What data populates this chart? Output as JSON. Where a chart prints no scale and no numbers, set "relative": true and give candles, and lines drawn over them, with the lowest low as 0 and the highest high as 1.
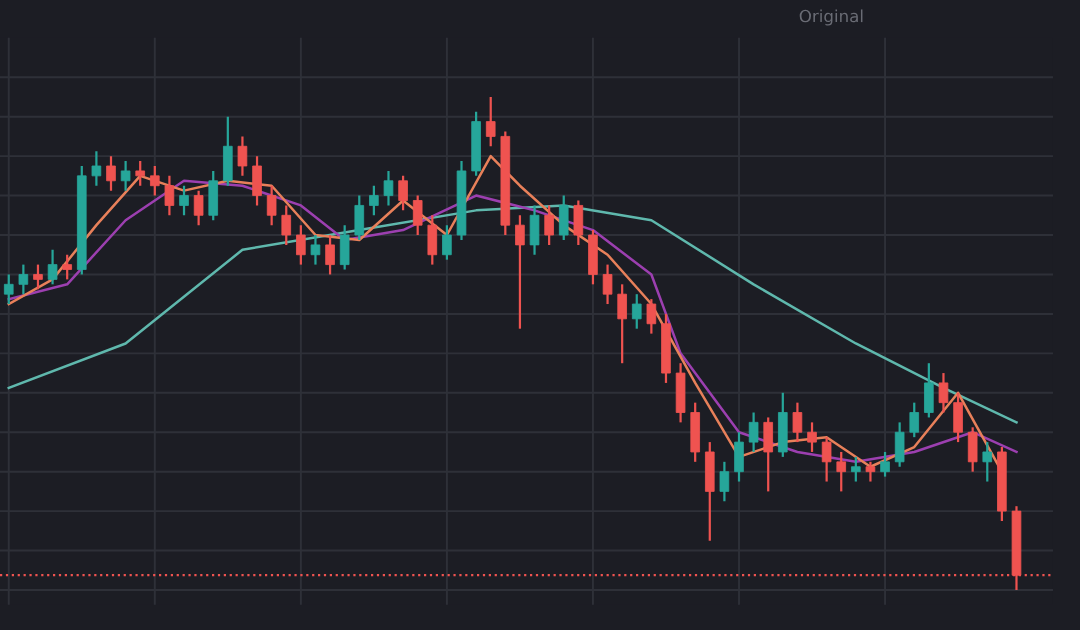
{
  "chart_data": {
    "type": "candlestick",
    "relative": true,
    "grid": true,
    "categories": [
      null,
      null,
      null,
      null,
      null,
      null,
      null,
      null,
      null,
      null,
      null,
      null,
      null,
      null,
      null,
      null,
      null,
      null,
      null,
      null,
      null,
      null,
      null,
      null,
      null,
      null,
      null,
      null,
      null,
      null,
      null,
      null,
      null,
      null,
      null,
      null,
      null,
      null,
      null,
      null,
      null,
      null,
      null,
      null,
      null,
      null,
      null,
      null,
      null,
      null,
      null,
      null,
      null,
      null,
      null,
      null,
      null,
      null,
      null,
      null,
      null,
      null,
      null,
      null,
      null,
      null,
      null,
      null,
      null,
      null
    ],
    "ohlc": [
      [
        0.6,
        0.64,
        0.58,
        0.62
      ],
      [
        0.62,
        0.66,
        0.6,
        0.64
      ],
      [
        0.64,
        0.66,
        0.61,
        0.63
      ],
      [
        0.63,
        0.69,
        0.62,
        0.66
      ],
      [
        0.66,
        0.68,
        0.63,
        0.65
      ],
      [
        0.65,
        0.86,
        0.64,
        0.84
      ],
      [
        0.84,
        0.89,
        0.82,
        0.86
      ],
      [
        0.86,
        0.88,
        0.81,
        0.83
      ],
      [
        0.83,
        0.87,
        0.81,
        0.85
      ],
      [
        0.85,
        0.87,
        0.82,
        0.84
      ],
      [
        0.84,
        0.86,
        0.8,
        0.82
      ],
      [
        0.82,
        0.84,
        0.76,
        0.78
      ],
      [
        0.78,
        0.82,
        0.76,
        0.8
      ],
      [
        0.8,
        0.81,
        0.74,
        0.76
      ],
      [
        0.76,
        0.85,
        0.75,
        0.83
      ],
      [
        0.83,
        0.96,
        0.82,
        0.9
      ],
      [
        0.9,
        0.92,
        0.84,
        0.86
      ],
      [
        0.86,
        0.88,
        0.78,
        0.8
      ],
      [
        0.8,
        0.82,
        0.74,
        0.76
      ],
      [
        0.76,
        0.78,
        0.7,
        0.72
      ],
      [
        0.72,
        0.74,
        0.66,
        0.68
      ],
      [
        0.68,
        0.72,
        0.66,
        0.7
      ],
      [
        0.7,
        0.72,
        0.64,
        0.66
      ],
      [
        0.66,
        0.74,
        0.65,
        0.72
      ],
      [
        0.72,
        0.8,
        0.71,
        0.78
      ],
      [
        0.78,
        0.82,
        0.76,
        0.8
      ],
      [
        0.8,
        0.85,
        0.78,
        0.83
      ],
      [
        0.83,
        0.84,
        0.77,
        0.79
      ],
      [
        0.79,
        0.8,
        0.72,
        0.74
      ],
      [
        0.74,
        0.76,
        0.66,
        0.68
      ],
      [
        0.68,
        0.74,
        0.67,
        0.72
      ],
      [
        0.72,
        0.87,
        0.71,
        0.85
      ],
      [
        0.85,
        0.97,
        0.84,
        0.95
      ],
      [
        0.95,
        1.0,
        0.9,
        0.92
      ],
      [
        0.92,
        0.93,
        0.72,
        0.74
      ],
      [
        0.74,
        0.76,
        0.53,
        0.7
      ],
      [
        0.7,
        0.78,
        0.68,
        0.76
      ],
      [
        0.76,
        0.78,
        0.7,
        0.72
      ],
      [
        0.72,
        0.8,
        0.71,
        0.78
      ],
      [
        0.78,
        0.79,
        0.7,
        0.72
      ],
      [
        0.72,
        0.73,
        0.62,
        0.64
      ],
      [
        0.64,
        0.66,
        0.58,
        0.6
      ],
      [
        0.6,
        0.62,
        0.46,
        0.55
      ],
      [
        0.55,
        0.6,
        0.53,
        0.58
      ],
      [
        0.58,
        0.59,
        0.52,
        0.54
      ],
      [
        0.54,
        0.56,
        0.42,
        0.44
      ],
      [
        0.44,
        0.46,
        0.34,
        0.36
      ],
      [
        0.36,
        0.38,
        0.26,
        0.28
      ],
      [
        0.28,
        0.3,
        0.1,
        0.2
      ],
      [
        0.2,
        0.26,
        0.18,
        0.24
      ],
      [
        0.24,
        0.32,
        0.22,
        0.3
      ],
      [
        0.3,
        0.36,
        0.28,
        0.34
      ],
      [
        0.34,
        0.35,
        0.2,
        0.28
      ],
      [
        0.28,
        0.4,
        0.27,
        0.36
      ],
      [
        0.36,
        0.38,
        0.3,
        0.32
      ],
      [
        0.32,
        0.34,
        0.28,
        0.3
      ],
      [
        0.3,
        0.31,
        0.22,
        0.26
      ],
      [
        0.26,
        0.28,
        0.2,
        0.24
      ],
      [
        0.24,
        0.27,
        0.22,
        0.25
      ],
      [
        0.25,
        0.26,
        0.22,
        0.24
      ],
      [
        0.24,
        0.28,
        0.23,
        0.26
      ],
      [
        0.26,
        0.34,
        0.25,
        0.32
      ],
      [
        0.32,
        0.38,
        0.31,
        0.36
      ],
      [
        0.36,
        0.46,
        0.35,
        0.42
      ],
      [
        0.42,
        0.44,
        0.36,
        0.38
      ],
      [
        0.38,
        0.4,
        0.3,
        0.32
      ],
      [
        0.32,
        0.33,
        0.24,
        0.26
      ],
      [
        0.26,
        0.3,
        0.22,
        0.28
      ],
      [
        0.28,
        0.29,
        0.14,
        0.16
      ],
      [
        0.16,
        0.17,
        0.0,
        0.03
      ]
    ],
    "series": [
      {
        "type": "line",
        "color": "#5fb8ad",
        "values": [
          0.41,
          null,
          null,
          null,
          null,
          null,
          null,
          null,
          0.5,
          null,
          null,
          null,
          null,
          null,
          null,
          null,
          0.69,
          null,
          null,
          null,
          null,
          null,
          null,
          null,
          0.73,
          null,
          null,
          null,
          null,
          null,
          null,
          null,
          0.77,
          null,
          null,
          null,
          null,
          null,
          0.78,
          null,
          null,
          null,
          null,
          null,
          0.75,
          null,
          null,
          null,
          null,
          null,
          null,
          0.62,
          null,
          null,
          null,
          null,
          null,
          null,
          0.5,
          null,
          null,
          null,
          null,
          null,
          0.41,
          null,
          null,
          null,
          null,
          0.34
        ]
      },
      {
        "type": "line",
        "color": "#9c3fb0",
        "values": [
          0.59,
          null,
          null,
          null,
          0.62,
          null,
          null,
          null,
          0.75,
          null,
          null,
          null,
          0.83,
          null,
          null,
          null,
          0.82,
          null,
          null,
          null,
          0.78,
          null,
          null,
          0.71,
          null,
          null,
          null,
          0.73,
          null,
          null,
          null,
          null,
          0.8,
          null,
          null,
          null,
          0.77,
          null,
          null,
          null,
          0.73,
          null,
          null,
          null,
          0.64,
          null,
          0.48,
          null,
          null,
          null,
          0.32,
          null,
          null,
          null,
          0.28,
          null,
          null,
          null,
          0.26,
          null,
          null,
          null,
          0.28,
          null,
          null,
          null,
          0.32,
          null,
          null,
          0.28
        ]
      },
      {
        "type": "line",
        "color": "#e8805a",
        "values": [
          0.58,
          null,
          null,
          0.63,
          null,
          null,
          0.74,
          null,
          null,
          0.84,
          null,
          null,
          0.81,
          null,
          null,
          0.83,
          null,
          null,
          0.82,
          null,
          null,
          0.72,
          null,
          null,
          0.71,
          null,
          null,
          0.79,
          null,
          null,
          0.72,
          null,
          null,
          0.88,
          null,
          0.82,
          null,
          null,
          0.74,
          null,
          null,
          0.68,
          null,
          null,
          0.58,
          null,
          null,
          0.42,
          null,
          null,
          0.27,
          null,
          null,
          0.3,
          null,
          null,
          0.31,
          null,
          null,
          0.25,
          null,
          null,
          0.29,
          null,
          null,
          0.4,
          null,
          null,
          0.24,
          null
        ]
      }
    ],
    "ref_lines": [
      {
        "axis": "y",
        "value": 0.03,
        "color": "#ef5350",
        "line_style": "dotted"
      }
    ],
    "annotations": [
      "Original"
    ]
  }
}
